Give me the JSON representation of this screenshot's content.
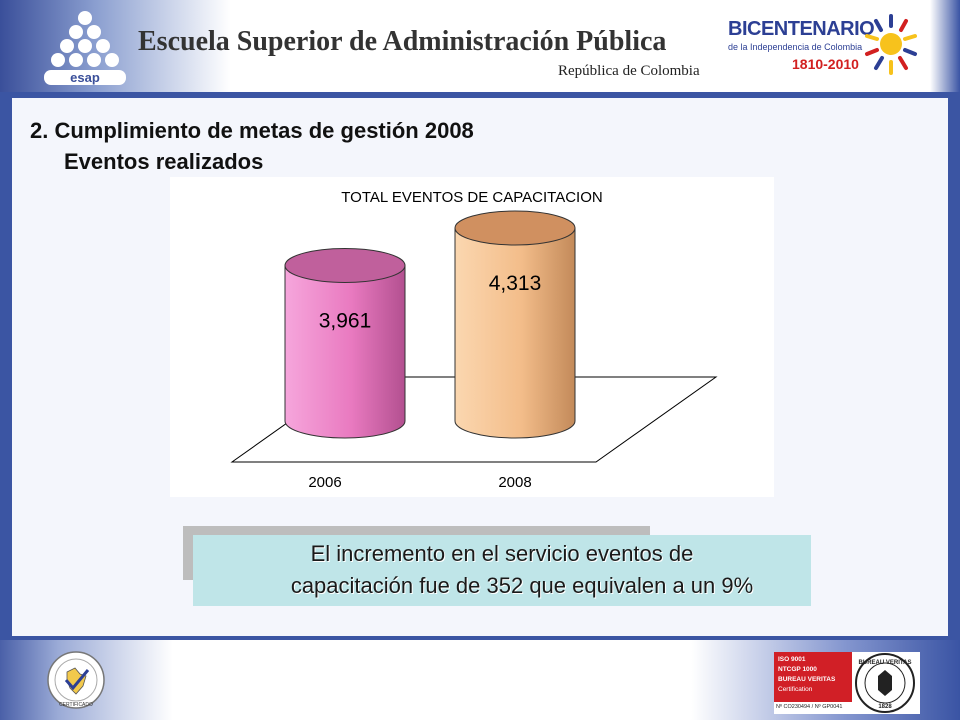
{
  "header": {
    "logo_text": "esap",
    "title": "Escuela Superior de Administración Pública",
    "subtitle": "República de Colombia",
    "bicentenario": {
      "title": "BICENTENARIO",
      "subtitle": "de la Independencia de Colombia",
      "years": "1810-2010"
    }
  },
  "content": {
    "heading": "2. Cumplimiento de metas de gestión 2008",
    "subheading": "Eventos realizados",
    "callout": {
      "line1": "El incremento en el servicio eventos de",
      "line2": "capacitación fue de 352 que equivalen a un 9%"
    }
  },
  "chart_data": {
    "type": "bar",
    "title": "TOTAL EVENTOS DE CAPACITACION",
    "categories": [
      "2006",
      "2008"
    ],
    "values": [
      3961,
      4313
    ],
    "value_labels": [
      "3,961",
      "4,313"
    ],
    "colors": [
      "#e97ac0",
      "#f3bd8a"
    ],
    "xlabel": "",
    "ylabel": "",
    "grid": false,
    "legend": "none"
  },
  "footer": {
    "left_cert_text": "CERTIFICADO",
    "right_cert": {
      "lines": [
        "ISO 9001",
        "NTCGP 1000",
        "BUREAU VERITAS",
        "Certification"
      ],
      "reference": "Nº CO230494 / Nº GP0041",
      "seal_top": "BUREAU VERITAS",
      "seal_year": "1828"
    }
  }
}
